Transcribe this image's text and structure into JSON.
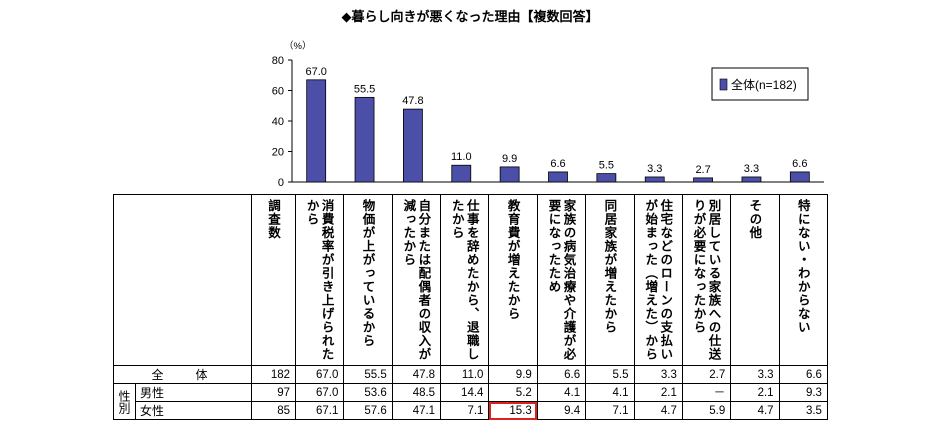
{
  "title": "◆暮らし向きが悪くなった理由【複数回答】",
  "chart_data": {
    "type": "bar",
    "ylabel": "（%）",
    "ylim": [
      0,
      80
    ],
    "yticks": [
      0,
      20,
      40,
      60,
      80
    ],
    "legend": {
      "label": "全体(n=182)",
      "position": "top-right"
    },
    "bar_color": "#4b4fa8",
    "highlight_color": "#e0201c",
    "categories": [
      "消費税率が引き上げられたから",
      "物価が上がっているから",
      "自分または配偶者の収入が減ったから",
      "仕事を辞めたから、退職したから",
      "教育費が増えたから",
      "家族の病気治療や介護が必要になったため",
      "同居家族が増えたから",
      "住宅などのローンの支払いが始まった（増えた）から",
      "別居している家族への仕送りが必要になったから",
      "その他",
      "特にない・わからない"
    ],
    "values": [
      67.0,
      55.5,
      47.8,
      11.0,
      9.9,
      6.6,
      5.5,
      3.3,
      2.7,
      3.3,
      6.6
    ]
  },
  "table": {
    "count_header": "調査数",
    "group_label": "性別",
    "rows": [
      {
        "label": "全　体",
        "count": "182",
        "values": [
          "67.0",
          "55.5",
          "47.8",
          "11.0",
          "9.9",
          "6.6",
          "5.5",
          "3.3",
          "2.7",
          "3.3",
          "6.6"
        ]
      },
      {
        "label": "男性",
        "count": "97",
        "values": [
          "67.0",
          "53.6",
          "48.5",
          "14.4",
          "5.2",
          "4.1",
          "4.1",
          "2.1",
          "－",
          "2.1",
          "9.3"
        ]
      },
      {
        "label": "女性",
        "count": "85",
        "values": [
          "67.1",
          "57.6",
          "47.1",
          "7.1",
          "15.3",
          "9.4",
          "7.1",
          "4.7",
          "5.9",
          "4.7",
          "3.5"
        ]
      }
    ]
  }
}
